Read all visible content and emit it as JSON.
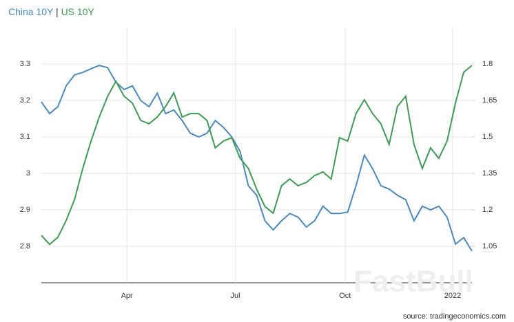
{
  "chart_data": {
    "type": "line",
    "legend_separator": "|",
    "source": "source: tradingeconomics.com",
    "watermark": "FastBull",
    "ylim": [
      2.7,
      3.4
    ],
    "yticks": [
      2.8,
      2.9,
      3,
      3.1,
      3.2,
      3.3
    ],
    "y2lim": [
      0.9,
      1.95
    ],
    "y2ticks": [
      1.05,
      1.2,
      1.35,
      1.5,
      1.65,
      1.8
    ],
    "xlim": [
      0,
      52
    ],
    "xticks": [
      {
        "value": 10.33,
        "label": "Apr"
      },
      {
        "value": 23.42,
        "label": "Jul"
      },
      {
        "value": 36.67,
        "label": "Oct"
      },
      {
        "value": 49.67,
        "label": "2022"
      }
    ],
    "grid": true,
    "series": [
      {
        "name": "China 10Y",
        "color": "#4a89c0",
        "values": [
          3.196,
          3.164,
          3.183,
          3.24,
          3.27,
          3.277,
          3.287,
          3.296,
          3.29,
          3.25,
          3.23,
          3.24,
          3.2,
          3.183,
          3.22,
          3.164,
          3.174,
          3.145,
          3.11,
          3.1,
          3.11,
          3.145,
          3.126,
          3.1,
          3.06,
          2.966,
          2.94,
          2.87,
          2.845,
          2.87,
          2.89,
          2.88,
          2.853,
          2.87,
          2.91,
          2.89,
          2.89,
          2.894,
          2.966,
          3.05,
          3.013,
          2.966,
          2.957,
          2.94,
          2.928,
          2.87,
          2.91,
          2.9,
          2.91,
          2.88,
          2.806,
          2.824,
          2.787
        ]
      },
      {
        "name": "US 10Y",
        "color": "#3f9a55",
        "axis": "y2",
        "values": [
          1.095,
          1.058,
          1.087,
          1.157,
          1.242,
          1.37,
          1.483,
          1.582,
          1.667,
          1.729,
          1.667,
          1.639,
          1.568,
          1.554,
          1.582,
          1.625,
          1.681,
          1.582,
          1.596,
          1.596,
          1.568,
          1.455,
          1.483,
          1.497,
          1.412,
          1.37,
          1.285,
          1.214,
          1.186,
          1.299,
          1.327,
          1.299,
          1.313,
          1.341,
          1.356,
          1.327,
          1.497,
          1.483,
          1.596,
          1.653,
          1.596,
          1.554,
          1.469,
          1.625,
          1.667,
          1.469,
          1.37,
          1.455,
          1.412,
          1.483,
          1.639,
          1.766,
          1.794
        ]
      }
    ]
  }
}
